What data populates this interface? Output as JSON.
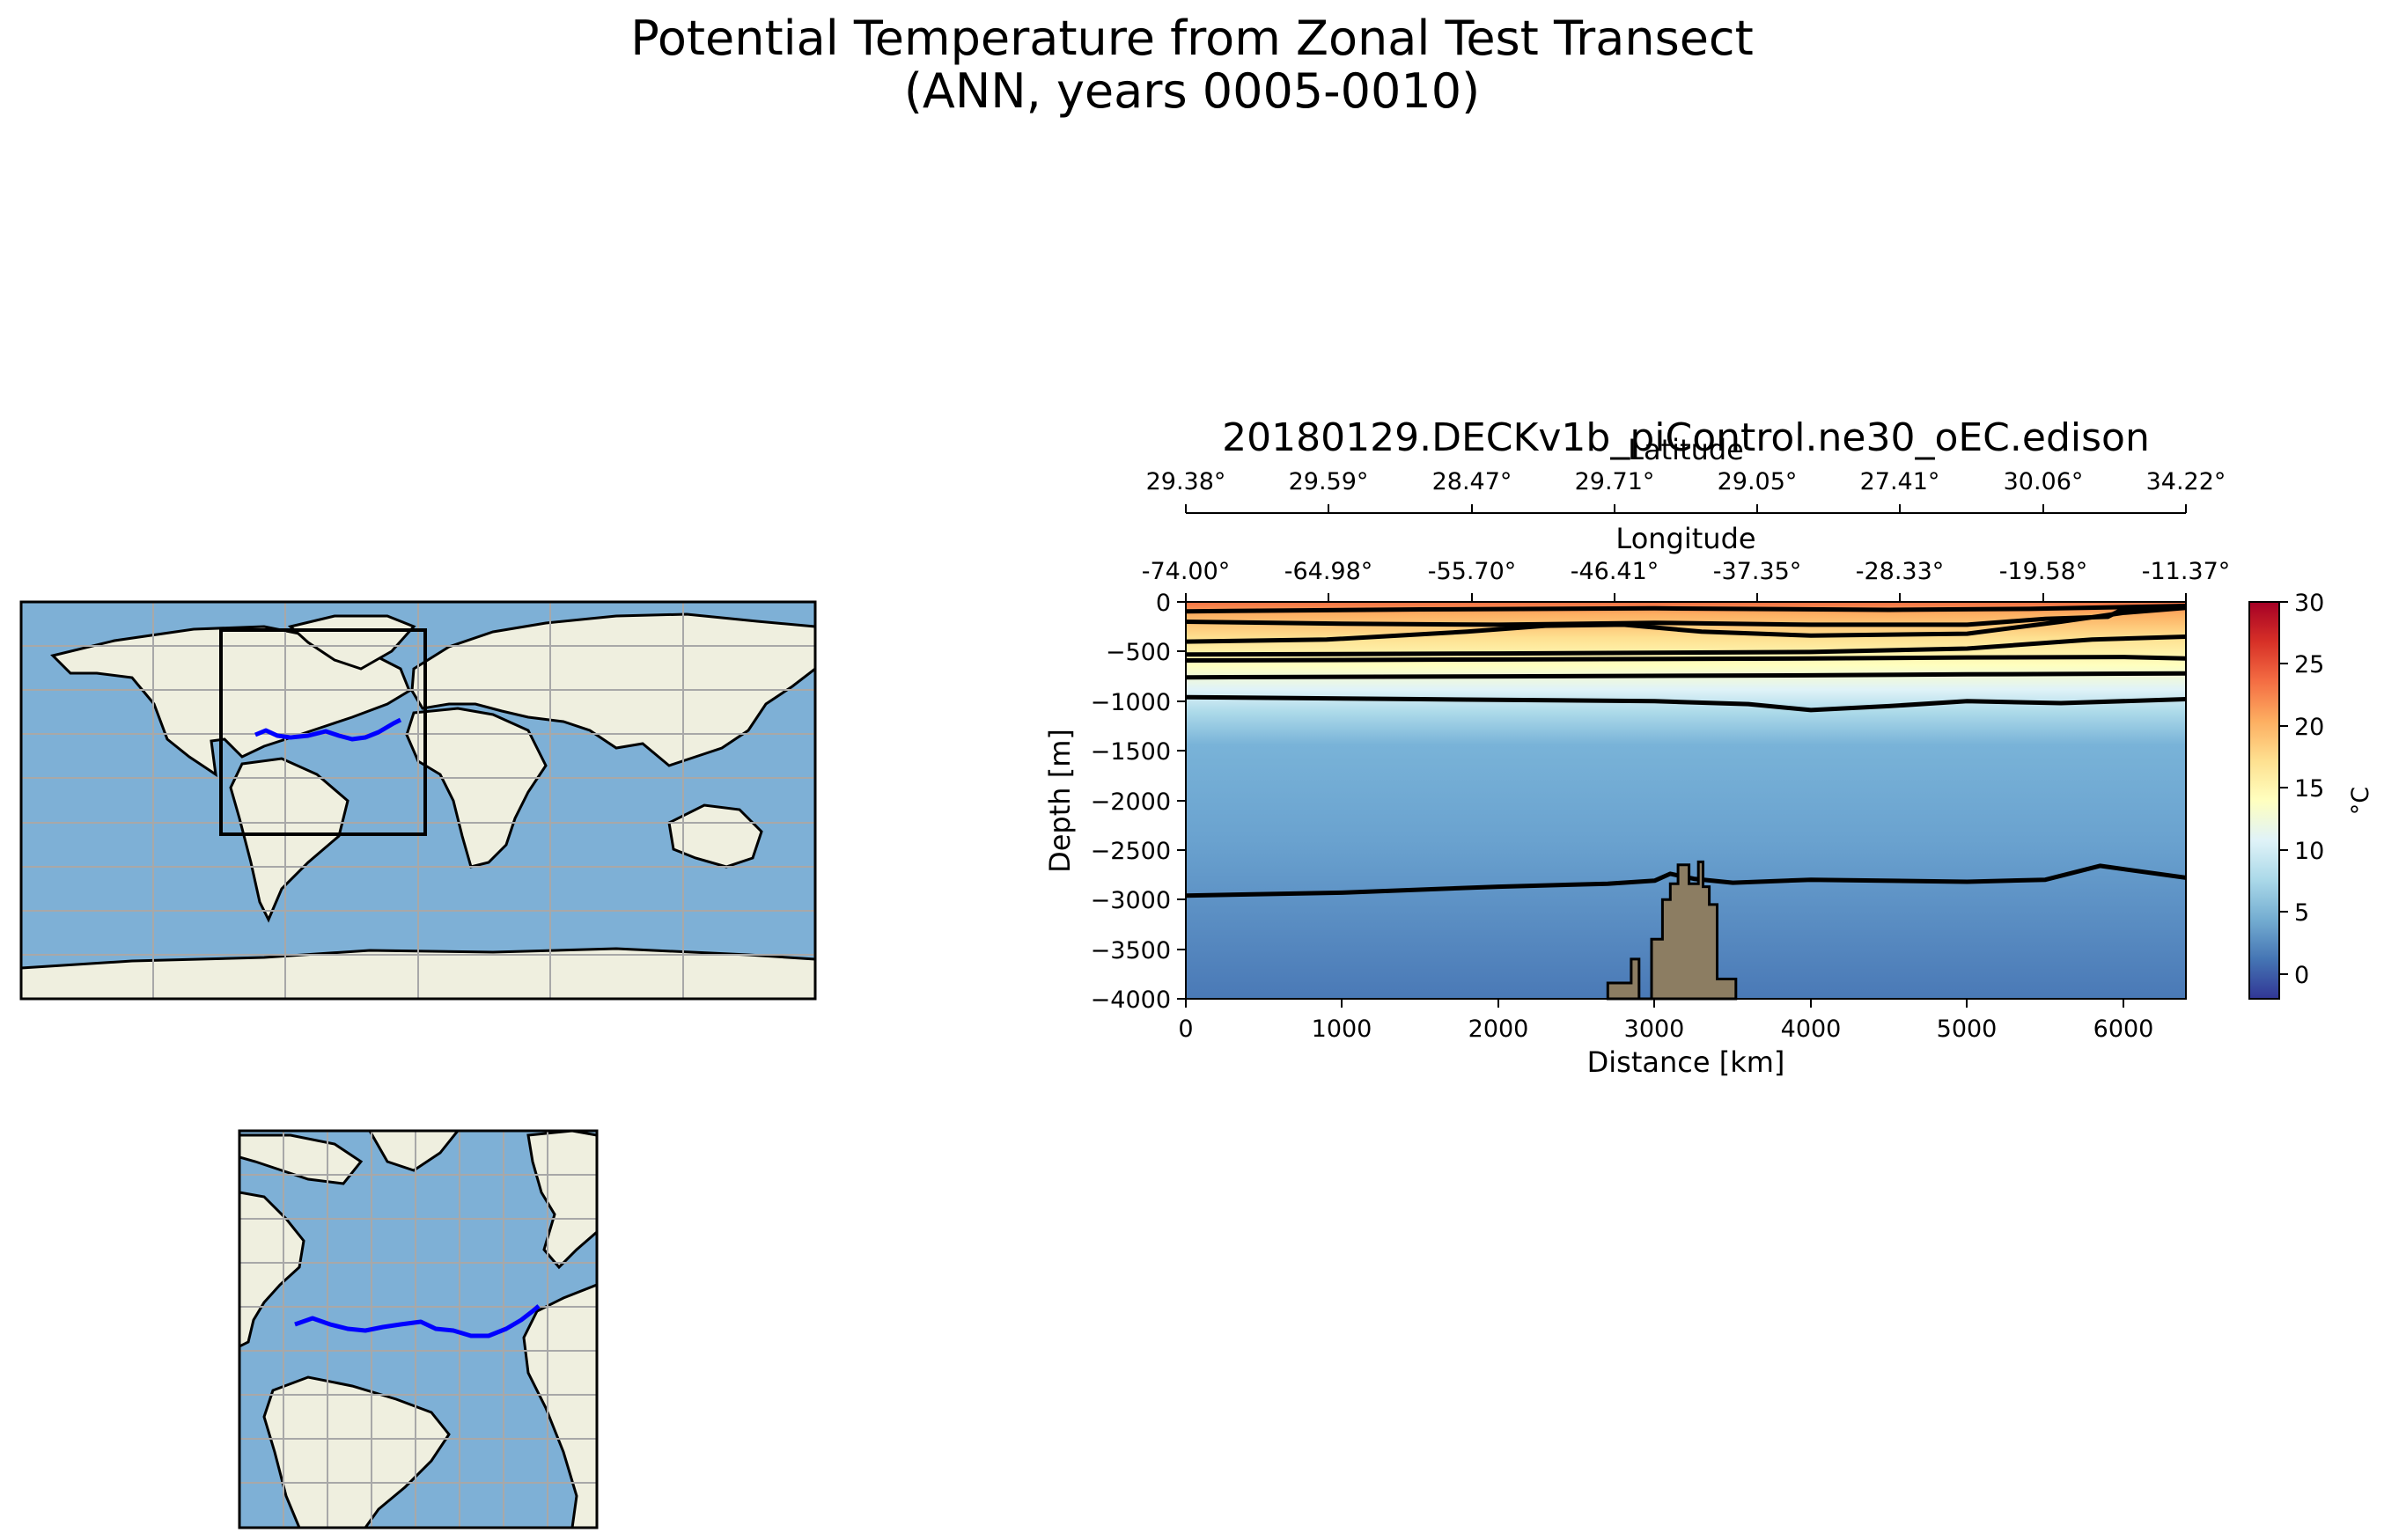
{
  "figure": {
    "title_line1": "Potential Temperature from Zonal Test Transect",
    "title_line2": "(ANN, years 0005-0010)"
  },
  "section_title": "20180129.DECKv1b_piControl.ne30_oEC.edison",
  "colorbar": {
    "label": "°C",
    "range": [
      -2,
      30
    ],
    "ticks": [
      "0",
      "5",
      "10",
      "15",
      "20",
      "25",
      "30"
    ],
    "colors": [
      "#313695",
      "#4575b4",
      "#74add1",
      "#abd9e9",
      "#e0f3f8",
      "#ffffbf",
      "#fee090",
      "#fdae61",
      "#f46d43",
      "#d73027",
      "#a50026"
    ]
  },
  "map_colors": {
    "ocean": "#7eb0d6",
    "land": "#efefdf",
    "transect": "#0000ff",
    "box": "#000000"
  },
  "chart_data": {
    "type": "heatmap",
    "title": "20180129.DECKv1b_piControl.ne30_oEC.edison",
    "xlabel": "Distance [km]",
    "ylabel": "Depth [m]",
    "xlim": [
      0,
      6400
    ],
    "ylim": [
      -4000,
      0
    ],
    "xticks": [
      "0",
      "1000",
      "2000",
      "3000",
      "4000",
      "5000",
      "6000"
    ],
    "yticks": [
      "0",
      "−500",
      "−1000",
      "−1500",
      "−2000",
      "−2500",
      "−3000",
      "−3500",
      "−4000"
    ],
    "longitude_label": "Longitude",
    "longitude_ticks": [
      "-74.00°",
      "-64.98°",
      "-55.70°",
      "-46.41°",
      "-37.35°",
      "-28.33°",
      "-19.58°",
      "-11.37°"
    ],
    "latitude_label": "Latitude",
    "latitude_ticks": [
      "29.38°",
      "29.59°",
      "28.47°",
      "29.71°",
      "29.05°",
      "27.41°",
      "30.06°",
      "34.22°"
    ],
    "contours": [
      {
        "name": "c1",
        "points": [
          [
            0,
            -95
          ],
          [
            1500,
            -75
          ],
          [
            3000,
            -65
          ],
          [
            4500,
            -80
          ],
          [
            5400,
            -70
          ],
          [
            6400,
            -40
          ]
        ]
      },
      {
        "name": "c2",
        "points": [
          [
            0,
            -200
          ],
          [
            1000,
            -220
          ],
          [
            2000,
            -230
          ],
          [
            3000,
            -210
          ],
          [
            4000,
            -230
          ],
          [
            5000,
            -230
          ],
          [
            5500,
            -170
          ],
          [
            5900,
            -150
          ],
          [
            6000,
            -70
          ],
          [
            6400,
            -40
          ]
        ]
      },
      {
        "name": "c3",
        "points": [
          [
            0,
            -400
          ],
          [
            900,
            -380
          ],
          [
            1800,
            -300
          ],
          [
            2300,
            -240
          ],
          [
            2800,
            -230
          ],
          [
            3300,
            -300
          ],
          [
            4000,
            -340
          ],
          [
            5000,
            -320
          ],
          [
            5600,
            -200
          ],
          [
            6000,
            -110
          ],
          [
            6400,
            -60
          ]
        ]
      },
      {
        "name": "c4",
        "points": [
          [
            0,
            -530
          ],
          [
            2000,
            -520
          ],
          [
            4000,
            -505
          ],
          [
            5000,
            -470
          ],
          [
            5800,
            -380
          ],
          [
            6400,
            -350
          ]
        ]
      },
      {
        "name": "c5",
        "points": [
          [
            0,
            -590
          ],
          [
            2000,
            -580
          ],
          [
            4000,
            -570
          ],
          [
            5000,
            -560
          ],
          [
            6000,
            -555
          ],
          [
            6400,
            -570
          ]
        ]
      },
      {
        "name": "c6",
        "points": [
          [
            0,
            -760
          ],
          [
            2000,
            -750
          ],
          [
            4000,
            -740
          ],
          [
            5000,
            -730
          ],
          [
            6400,
            -720
          ]
        ]
      },
      {
        "name": "c7",
        "points": [
          [
            0,
            -960
          ],
          [
            1500,
            -980
          ],
          [
            3000,
            -1000
          ],
          [
            3600,
            -1030
          ],
          [
            4000,
            -1090
          ],
          [
            4500,
            -1050
          ],
          [
            5000,
            -1000
          ],
          [
            5600,
            -1020
          ],
          [
            6400,
            -980
          ]
        ]
      },
      {
        "name": "c8",
        "points": [
          [
            0,
            -2960
          ],
          [
            1000,
            -2930
          ],
          [
            2000,
            -2870
          ],
          [
            2700,
            -2840
          ],
          [
            3000,
            -2810
          ],
          [
            3100,
            -2740
          ],
          [
            3250,
            -2790
          ],
          [
            3500,
            -2830
          ],
          [
            4000,
            -2800
          ],
          [
            5000,
            -2820
          ],
          [
            5500,
            -2800
          ],
          [
            5850,
            -2660
          ],
          [
            6400,
            -2780
          ]
        ]
      }
    ],
    "bathymetry": [
      [
        2700,
        -4000
      ],
      [
        2700,
        -3840
      ],
      [
        2850,
        -3840
      ],
      [
        2850,
        -3600
      ],
      [
        2900,
        -3600
      ],
      [
        2900,
        -4000
      ],
      [
        2980,
        -4000
      ],
      [
        2980,
        -3400
      ],
      [
        3050,
        -3400
      ],
      [
        3050,
        -3000
      ],
      [
        3100,
        -3000
      ],
      [
        3100,
        -2840
      ],
      [
        3150,
        -2840
      ],
      [
        3150,
        -2650
      ],
      [
        3220,
        -2650
      ],
      [
        3220,
        -2840
      ],
      [
        3280,
        -2840
      ],
      [
        3280,
        -2620
      ],
      [
        3310,
        -2620
      ],
      [
        3310,
        -2870
      ],
      [
        3350,
        -2870
      ],
      [
        3350,
        -3050
      ],
      [
        3400,
        -3050
      ],
      [
        3400,
        -3800
      ],
      [
        3520,
        -3800
      ],
      [
        3520,
        -4000
      ]
    ]
  }
}
